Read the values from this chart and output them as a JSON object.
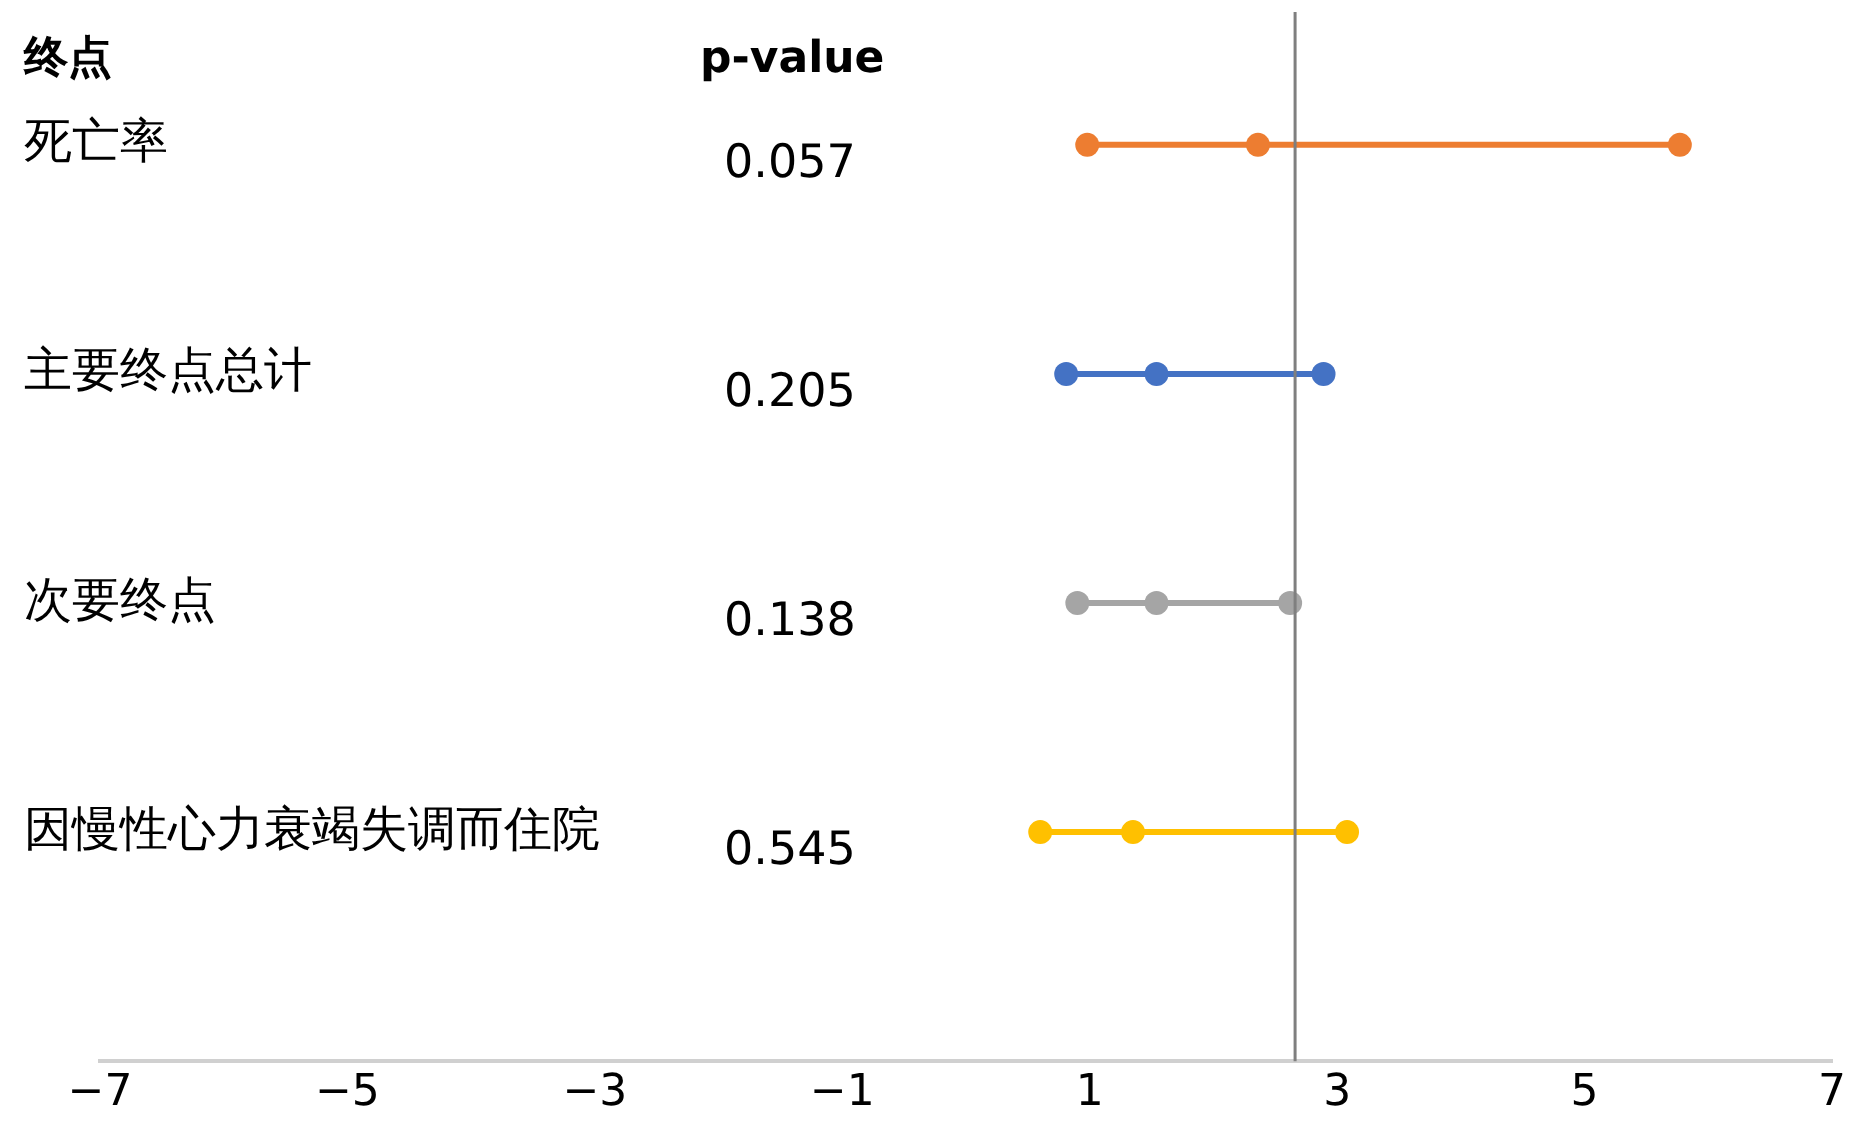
{
  "chart_data": {
    "type": "scatter",
    "orientation": "horizontal",
    "marker": "circle",
    "grid": false,
    "legend": false,
    "categories": [
      "死亡率",
      "主要终点总计",
      "次要终点",
      "因慢性心力衰竭失调而住院"
    ],
    "series": [
      {
        "colors": [
          "#ed7d31",
          "#4472c4",
          "#a5a5a5",
          "#ffc000"
        ],
        "values": [
          0.98,
          0.81,
          0.9,
          0.6
        ]
      },
      {
        "colors": [
          "#ed7d31",
          "#4472c4",
          "#a5a5a5",
          "#ffc000"
        ],
        "values": [
          2.36,
          1.54,
          1.54,
          1.35
        ]
      },
      {
        "colors": [
          "#ed7d31",
          "#4472c4",
          "#a5a5a5",
          "#ffc000"
        ],
        "values": [
          5.77,
          2.89,
          2.62,
          3.08
        ]
      }
    ],
    "xlim": [
      -7,
      7
    ],
    "xticks": [
      {
        "value": -7,
        "label": "−7"
      },
      {
        "value": -5,
        "label": "−5"
      },
      {
        "value": -3,
        "label": "−3"
      },
      {
        "value": -1,
        "label": "−1"
      },
      1,
      3,
      5,
      7
    ],
    "ref_lines": [
      {
        "axis": "x",
        "value": 2.66,
        "color": "#7f7f7f"
      }
    ],
    "annotations": [
      "终点",
      "p-value",
      "0.057",
      "0.205",
      "0.138",
      "0.545"
    ]
  }
}
